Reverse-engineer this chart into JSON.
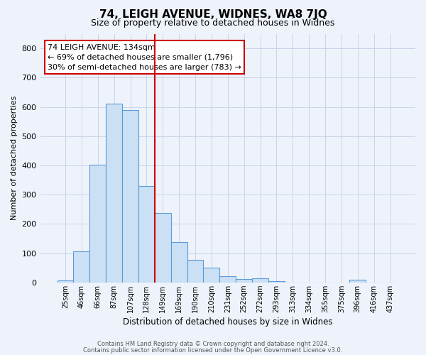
{
  "title": "74, LEIGH AVENUE, WIDNES, WA8 7JQ",
  "subtitle": "Size of property relative to detached houses in Widnes",
  "xlabel": "Distribution of detached houses by size in Widnes",
  "ylabel": "Number of detached properties",
  "bar_labels": [
    "25sqm",
    "46sqm",
    "66sqm",
    "87sqm",
    "107sqm",
    "128sqm",
    "149sqm",
    "169sqm",
    "190sqm",
    "210sqm",
    "231sqm",
    "252sqm",
    "272sqm",
    "293sqm",
    "313sqm",
    "334sqm",
    "355sqm",
    "375sqm",
    "396sqm",
    "416sqm",
    "437sqm"
  ],
  "bar_values": [
    7,
    106,
    403,
    610,
    590,
    330,
    238,
    137,
    78,
    50,
    22,
    12,
    15,
    5,
    0,
    0,
    0,
    0,
    8,
    0,
    0
  ],
  "bar_color": "#cce0f5",
  "bar_edge_color": "#5b9bd5",
  "vline_x_index": 5,
  "vline_color": "#cc0000",
  "ylim": [
    0,
    850
  ],
  "yticks": [
    0,
    100,
    200,
    300,
    400,
    500,
    600,
    700,
    800
  ],
  "annotation_text": "74 LEIGH AVENUE: 134sqm\n← 69% of detached houses are smaller (1,796)\n30% of semi-detached houses are larger (783) →",
  "annotation_box_facecolor": "#ffffff",
  "annotation_box_edgecolor": "#cc0000",
  "footer_line1": "Contains HM Land Registry data © Crown copyright and database right 2024.",
  "footer_line2": "Contains public sector information licensed under the Open Government Licence v3.0.",
  "bg_color": "#eef3fb",
  "grid_color": "#c8d4e8"
}
